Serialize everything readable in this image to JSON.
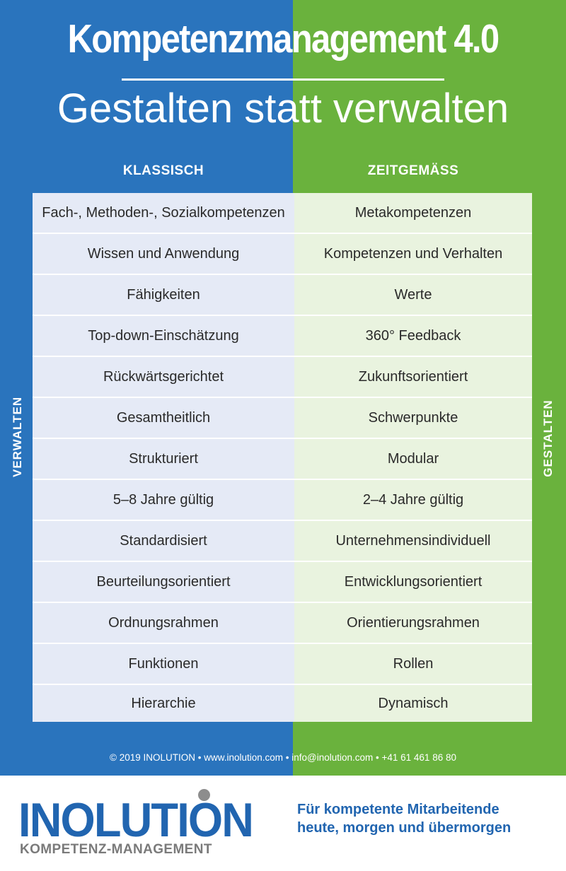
{
  "header": {
    "title": "Kompetenzmanagement 4.0",
    "subtitle": "Gestalten statt verwalten"
  },
  "columns": {
    "left": "KLASSISCH",
    "right": "ZEITGEMÄSS"
  },
  "side_labels": {
    "left": "VERWALTEN",
    "right": "GESTALTEN"
  },
  "rows": [
    {
      "left": "Fach-, Methoden-, Sozialkompetenzen",
      "right": "Metakompetenzen"
    },
    {
      "left": "Wissen und Anwendung",
      "right": "Kompetenzen und Verhalten"
    },
    {
      "left": "Fähigkeiten",
      "right": "Werte"
    },
    {
      "left": "Top-down-Einschätzung",
      "right": "360° Feedback"
    },
    {
      "left": "Rückwärtsgerichtet",
      "right": "Zukunftsorientiert"
    },
    {
      "left": "Gesamtheitlich",
      "right": "Schwerpunkte"
    },
    {
      "left": "Strukturiert",
      "right": "Modular"
    },
    {
      "left": "5–8 Jahre gültig",
      "right": "2–4 Jahre gültig"
    },
    {
      "left": "Standardisiert",
      "right": "Unternehmensindividuell"
    },
    {
      "left": "Beurteilungsorientiert",
      "right": "Entwicklungsorientiert"
    },
    {
      "left": "Ordnungsrahmen",
      "right": "Orientierungsrahmen"
    },
    {
      "left": "Funktionen",
      "right": "Rollen"
    },
    {
      "left": "Hierarchie",
      "right": "Dynamisch"
    }
  ],
  "footer": {
    "line": "© 2019 INOLUTION • www.inolution.com • info@inolution.com • +41 61 461 86 80"
  },
  "brand": {
    "logo_text": "INOLUTION",
    "logo_subtext": "KOMPETENZ-MANAGEMENT",
    "tagline_line1": "Für kompetente Mitarbeitende",
    "tagline_line2": "heute, morgen und übermorgen"
  },
  "colors": {
    "left_panel": "#2a74bd",
    "right_panel": "#6ab23d",
    "brand_blue": "#2165b0",
    "brand_gray": "#7a7a7a"
  }
}
